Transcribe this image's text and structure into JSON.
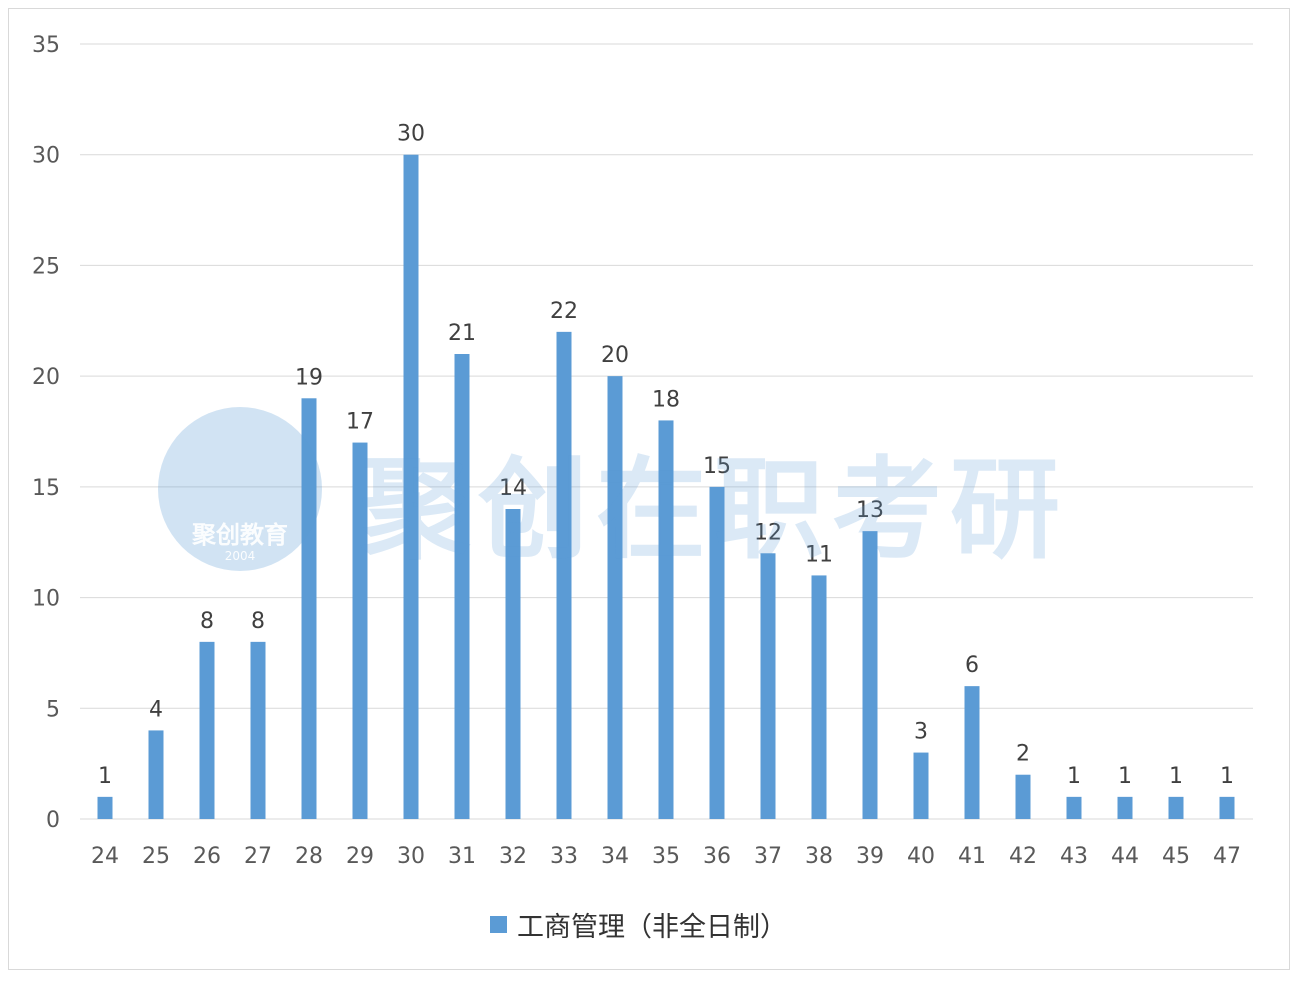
{
  "chart_data": {
    "type": "bar",
    "categories": [
      "24",
      "25",
      "26",
      "27",
      "28",
      "29",
      "30",
      "31",
      "32",
      "33",
      "34",
      "35",
      "36",
      "37",
      "38",
      "39",
      "40",
      "41",
      "42",
      "43",
      "44",
      "45",
      "47"
    ],
    "series": [
      {
        "name": "工商管理（非全日制）",
        "values": [
          1,
          4,
          8,
          8,
          19,
          17,
          30,
          21,
          14,
          22,
          20,
          18,
          15,
          12,
          11,
          13,
          3,
          6,
          2,
          1,
          1,
          1,
          1
        ]
      }
    ],
    "ylim": [
      0,
      35
    ],
    "yticks": [
      0,
      5,
      10,
      15,
      20,
      25,
      30,
      35
    ],
    "grid": true,
    "legend": "bottom",
    "data_labels": true,
    "color": "#5b9bd5"
  },
  "watermark": {
    "text": "聚创在职考研",
    "logo_text": "聚创教育",
    "logo_year": "2004"
  }
}
